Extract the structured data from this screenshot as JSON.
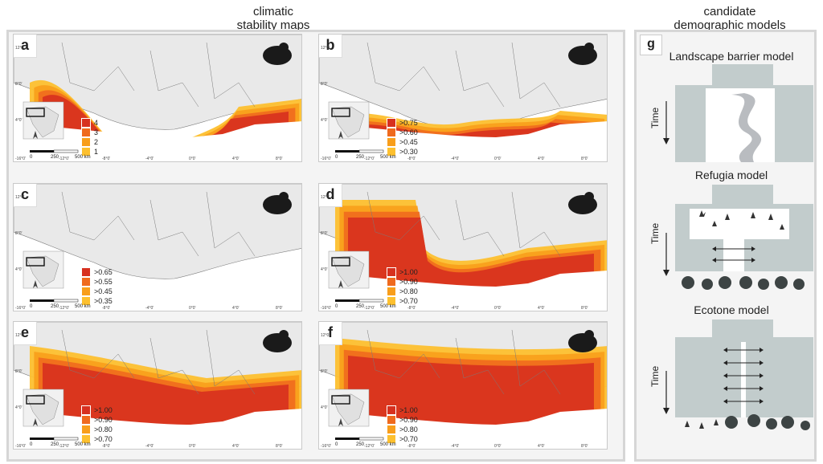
{
  "headers": {
    "left": "climatic\nstability maps",
    "right": "candidate\ndemographic models"
  },
  "colors": {
    "level1": "#d7301f",
    "level2": "#ef6a1e",
    "level3": "#f89e1b",
    "level4": "#fdc02f",
    "land": "#e9e9e9",
    "border": "#7a7a7a",
    "model_gray": "#c2cccc"
  },
  "panels": [
    {
      "label": "a",
      "icon": "frog-icon",
      "legend": [
        "4",
        "3",
        "2",
        "1"
      ]
    },
    {
      "label": "b",
      "icon": "frog-icon",
      "legend": [
        ">0.75",
        ">0.60",
        ">0.45",
        ">0.30"
      ]
    },
    {
      "label": "c",
      "icon": "toad-icon",
      "legend": [
        ">0.65",
        ">0.55",
        ">0.45",
        ">0.35"
      ]
    },
    {
      "label": "d",
      "icon": "chimpanzee-icon",
      "legend": [
        ">1.00",
        ">0.90",
        ">0.80",
        ">0.70"
      ]
    },
    {
      "label": "e",
      "icon": "snake-icon",
      "legend": [
        ">1.00",
        ">0.90",
        ">0.80",
        ">0.70"
      ]
    },
    {
      "label": "f",
      "icon": "coiled-snake-icon",
      "legend": [
        ">1.00",
        ">0.90",
        ">0.80",
        ">0.70"
      ]
    }
  ],
  "map_ticks": {
    "lat": [
      "12°0'",
      "8°0'",
      "4°0'"
    ],
    "lon": [
      "-16°0'",
      "-12°0'",
      "-8°0'",
      "-4°0'",
      "0°0'",
      "4°0'",
      "8°0'"
    ]
  },
  "scale_bar": {
    "zero": "0",
    "mid": "250",
    "end": "500 km"
  },
  "models": {
    "panel_label": "g",
    "time_label": "Time",
    "items": [
      {
        "title": "Landscape barrier model"
      },
      {
        "title": "Refugia model"
      },
      {
        "title": "Ecotone model"
      }
    ]
  }
}
